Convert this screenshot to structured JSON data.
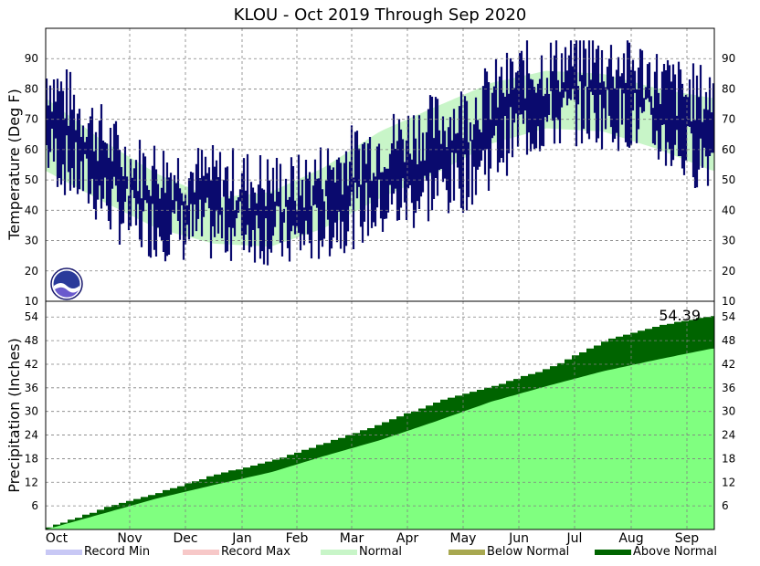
{
  "chart_data": [
    {
      "type": "bar",
      "title": "KLOU - Oct 2019 Through Sep 2020",
      "ylabel": "Temperature (Deg F)",
      "ylim": [
        10,
        100
      ],
      "yticks": [
        10,
        20,
        30,
        40,
        50,
        60,
        70,
        80,
        90
      ],
      "xticks": [
        "Oct",
        "Nov",
        "Dec",
        "Jan",
        "Feb",
        "Mar",
        "Apr",
        "May",
        "Jun",
        "Jul",
        "Aug",
        "Sep"
      ],
      "grid": true,
      "normal_band": {
        "name": "Normal",
        "days": [
          0,
          31,
          61,
          92,
          123,
          152,
          183,
          213,
          244,
          274,
          305,
          336,
          365
        ],
        "high": [
          77,
          63,
          52,
          44,
          46,
          54,
          66,
          74,
          82,
          86,
          85,
          80,
          77
        ],
        "low": [
          53,
          43,
          34,
          29,
          28,
          34,
          44,
          52,
          62,
          67,
          66,
          60,
          53
        ]
      },
      "observed_temperature": {
        "series_name": "Observed",
        "monthly_mean_high": [
          74,
          55,
          52,
          50,
          48,
          58,
          65,
          72,
          85,
          90,
          88,
          78
        ],
        "monthly_mean_low": [
          52,
          36,
          33,
          34,
          30,
          38,
          43,
          50,
          66,
          72,
          70,
          58
        ],
        "max_observed": 96,
        "min_observed": 14
      },
      "logo": "noaa-logo"
    },
    {
      "type": "area",
      "ylabel": "Precipitation (Inches)",
      "ylim": [
        0,
        58
      ],
      "yticks": [
        6,
        12,
        18,
        24,
        30,
        36,
        42,
        48,
        54
      ],
      "grid": true,
      "annotation": "54.39",
      "days": [
        0,
        31,
        61,
        92,
        123,
        152,
        183,
        213,
        244,
        274,
        305,
        336,
        365
      ],
      "series": [
        {
          "name": "Normal",
          "values": [
            0,
            4.0,
            7.9,
            11.3,
            14.5,
            18.6,
            22.7,
            27.4,
            32.5,
            36.4,
            40.2,
            43.3,
            46.0
          ]
        },
        {
          "name": "Above Normal",
          "values": [
            0.5,
            5.5,
            9.5,
            14.0,
            17.5,
            22.0,
            27.0,
            32.5,
            36.5,
            41.0,
            48.0,
            52.0,
            54.39
          ]
        }
      ]
    }
  ],
  "legend": [
    {
      "label": "Record Min",
      "color": "#c8c8f5"
    },
    {
      "label": "Record Max",
      "color": "#f7c8c8"
    },
    {
      "label": "Normal",
      "color": "#c8f5c8"
    },
    {
      "label": "Below Normal",
      "color": "#a8a850"
    },
    {
      "label": "Above Normal",
      "color": "#006400"
    }
  ],
  "colors": {
    "observed": "#0a0a6e",
    "normal_temp_band": "#c8f5c8",
    "precip_normal": "#80ff80",
    "precip_above": "#006400",
    "grid": "#808080"
  }
}
